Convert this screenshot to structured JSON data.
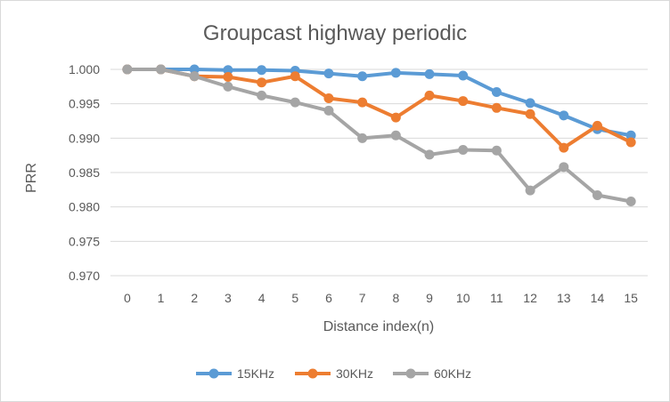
{
  "chart_data": {
    "type": "line",
    "title": "Groupcast highway periodic",
    "xlabel": "Distance index(n)",
    "ylabel": "PRR",
    "x": [
      0,
      1,
      2,
      3,
      4,
      5,
      6,
      7,
      8,
      9,
      10,
      11,
      12,
      13,
      14,
      15
    ],
    "ylim": [
      0.97,
      1.0
    ],
    "yticks": [
      "0.970",
      "0.975",
      "0.980",
      "0.985",
      "0.990",
      "0.995",
      "1.000"
    ],
    "grid": "horizontal",
    "legend_position": "bottom",
    "series": [
      {
        "name": "15KHz",
        "color": "#5b9bd5",
        "values": [
          1.0,
          1.0,
          1.0,
          0.9999,
          0.9999,
          0.9998,
          0.9994,
          0.999,
          0.9995,
          0.9993,
          0.9991,
          0.9967,
          0.9951,
          0.9933,
          0.9913,
          0.9904
        ]
      },
      {
        "name": "30KHz",
        "color": "#ed7d31",
        "values": [
          1.0,
          1.0,
          0.999,
          0.9989,
          0.9981,
          0.999,
          0.9958,
          0.9952,
          0.993,
          0.9962,
          0.9954,
          0.9944,
          0.9935,
          0.9886,
          0.9918,
          0.9894
        ]
      },
      {
        "name": "60KHz",
        "color": "#a5a5a5",
        "values": [
          1.0,
          1.0,
          0.999,
          0.9975,
          0.9962,
          0.9952,
          0.994,
          0.99,
          0.9904,
          0.9876,
          0.9883,
          0.9882,
          0.9824,
          0.9858,
          0.9817,
          0.9808
        ]
      }
    ]
  }
}
